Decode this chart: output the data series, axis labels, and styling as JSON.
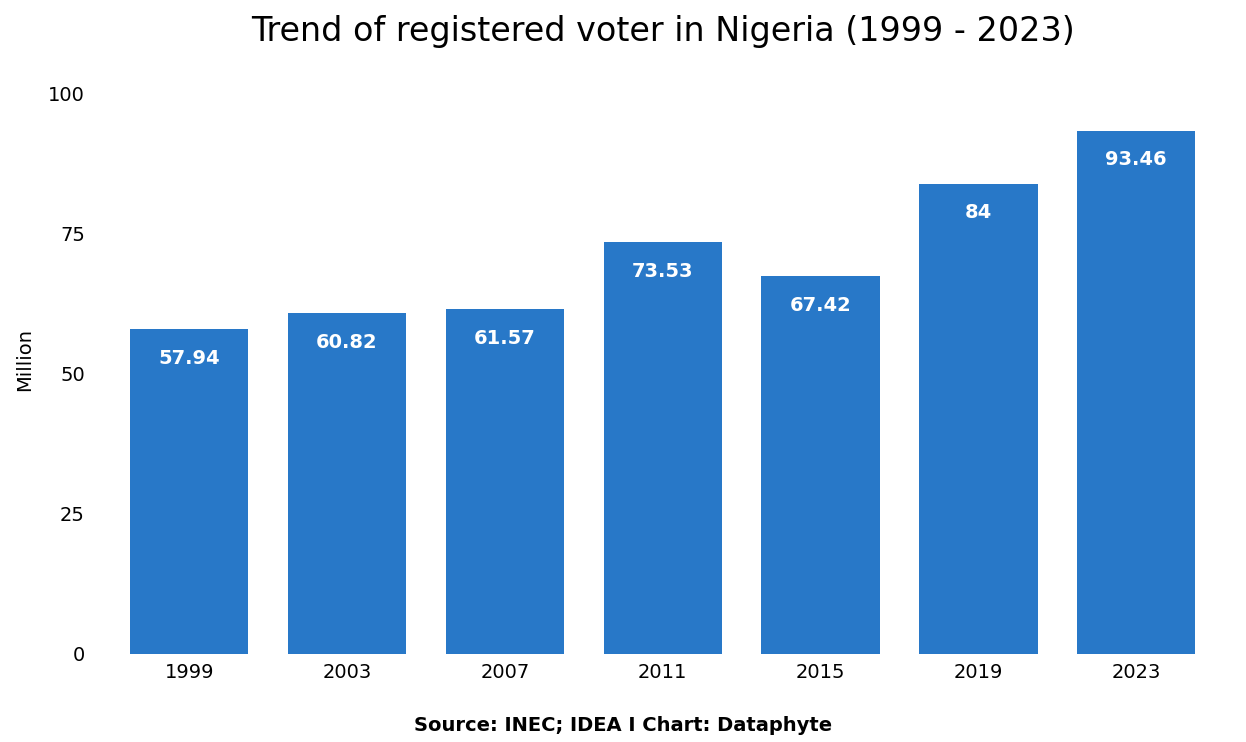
{
  "title": "Trend of registered voter in Nigeria (1999 - 2023)",
  "categories": [
    "1999",
    "2003",
    "2007",
    "2011",
    "2015",
    "2019",
    "2023"
  ],
  "values": [
    57.94,
    60.82,
    61.57,
    73.53,
    67.42,
    84.0,
    93.46
  ],
  "bar_labels": [
    "57.94",
    "60.82",
    "61.57",
    "73.53",
    "67.42",
    "84",
    "93.46"
  ],
  "bar_color": "#2878C8",
  "label_color": "#FFFFFF",
  "ylabel": "Million",
  "yticks": [
    0,
    25,
    50,
    75,
    100
  ],
  "ylim": [
    0,
    105
  ],
  "title_fontsize": 24,
  "axis_label_fontsize": 14,
  "tick_fontsize": 14,
  "bar_label_fontsize": 14,
  "source_text": "Source: INEC; IDEA I Chart: Dataphyte",
  "source_fontsize": 14,
  "background_color": "#FFFFFF",
  "bar_width": 0.75
}
